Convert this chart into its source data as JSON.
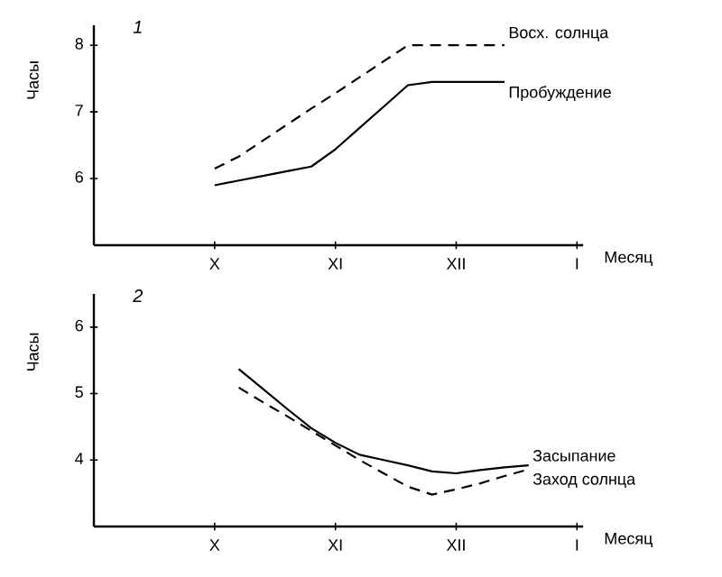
{
  "chart_data": [
    {
      "type": "line",
      "title": "1",
      "xlabel": "Месяц",
      "ylabel": "Часы",
      "categories": [
        null,
        null,
        null,
        null,
        null,
        "X",
        null,
        null,
        null,
        null,
        "XI",
        null,
        null,
        null,
        null,
        "XII",
        null,
        null,
        null,
        null,
        "I"
      ],
      "ylim": [
        5,
        8.3
      ],
      "yticks": [
        6,
        7,
        8
      ],
      "legend": false,
      "grid": false,
      "marker": "none",
      "series": [
        {
          "name": "Восх. солнца",
          "color": "#000000",
          "line_style": "dashed",
          "values": [
            null,
            null,
            null,
            null,
            null,
            6.15,
            6.33,
            6.57,
            6.81,
            7.05,
            7.28,
            7.52,
            7.76,
            8,
            8,
            8,
            8,
            8,
            null,
            null,
            null
          ]
        },
        {
          "name": "Пробуждение",
          "color": "#000000",
          "line_style": "solid",
          "values": [
            null,
            null,
            null,
            null,
            null,
            5.9,
            5.97,
            6.04,
            6.11,
            6.18,
            6.44,
            6.76,
            7.08,
            7.4,
            7.45,
            7.45,
            7.45,
            7.45,
            null,
            null,
            null
          ]
        }
      ]
    },
    {
      "type": "line",
      "title": "2",
      "xlabel": "Месяц",
      "ylabel": "Часы",
      "categories": [
        null,
        null,
        null,
        null,
        null,
        "X",
        null,
        null,
        null,
        null,
        "XI",
        null,
        null,
        null,
        null,
        "XII",
        null,
        null,
        null,
        null,
        "I"
      ],
      "ylim": [
        3,
        6.5
      ],
      "yticks": [
        4,
        5,
        6
      ],
      "legend": false,
      "grid": false,
      "marker": "none",
      "series": [
        {
          "name": "Засыпание",
          "color": "#000000",
          "line_style": "solid",
          "values": [
            null,
            null,
            null,
            null,
            null,
            null,
            5.37,
            5.07,
            4.77,
            4.48,
            4.26,
            4.08,
            4.0,
            3.92,
            3.83,
            3.8,
            3.85,
            3.89,
            3.92,
            null,
            null
          ]
        },
        {
          "name": "Заход солнца",
          "color": "#000000",
          "line_style": "dashed",
          "values": [
            null,
            null,
            null,
            null,
            null,
            null,
            5.09,
            4.87,
            4.66,
            4.44,
            4.22,
            4.0,
            3.8,
            3.6,
            3.48,
            3.56,
            3.65,
            3.76,
            3.86,
            null,
            null
          ]
        }
      ]
    }
  ]
}
